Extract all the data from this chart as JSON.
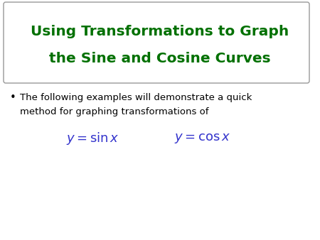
{
  "title_line1": "Using Transformations to Graph",
  "title_line2": "the Sine and Cosine Curves",
  "title_color": "#007000",
  "bullet_text_line1": "The following examples will demonstrate a quick",
  "bullet_text_line2": "method for graphing transformations of",
  "bullet_color": "#000000",
  "formula_color": "#3333cc",
  "formula1": "$y = \\sin x$",
  "formula2": "$y = \\cos x$",
  "background_color": "#ffffff",
  "box_edge_color": "#999999",
  "title_fontsize": 14.5,
  "bullet_fontsize": 9.5,
  "formula_fontsize": 13
}
